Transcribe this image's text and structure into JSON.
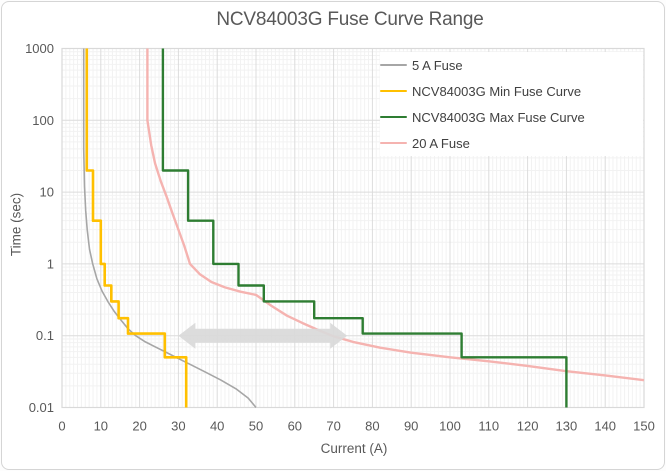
{
  "colors": {
    "card_border": "#d5d5d5",
    "plot_border": "#d9d9d9",
    "grid_major": "#dcdcdc",
    "grid_minor": "#f2f2f2",
    "axis_text": "#595959",
    "title_text": "#595959",
    "legend_text": "#404040",
    "arrow": "#d9d9d9"
  },
  "chart_data": {
    "type": "line",
    "title": "NCV84003G Fuse Curve Range",
    "xlabel": "Current (A)",
    "ylabel": "Time (sec)",
    "grid": "major and minor, both axes",
    "legend_position": "top-right-inside",
    "x_axis": {
      "scale": "linear",
      "min": 0,
      "max": 150,
      "tick_values": [
        0,
        10,
        20,
        30,
        40,
        50,
        60,
        70,
        80,
        90,
        100,
        110,
        120,
        130,
        140,
        150
      ],
      "tick_labels": [
        "0",
        "10",
        "20",
        "30",
        "40",
        "50",
        "60",
        "70",
        "80",
        "90",
        "100",
        "110",
        "120",
        "130",
        "140",
        "150"
      ]
    },
    "y_axis": {
      "scale": "log",
      "min": 0.01,
      "max": 1000,
      "tick_values": [
        1000,
        100,
        10,
        1,
        0.1,
        0.01
      ],
      "tick_labels": [
        "1000",
        "100",
        "10",
        "1",
        "0.1",
        "0.01"
      ]
    },
    "series": [
      {
        "name": "5 A Fuse",
        "color": "#a6a6a6",
        "style": "smooth",
        "stroke_width": 1.6,
        "points": [
          [
            5.6,
            1000
          ],
          [
            5.6,
            40
          ],
          [
            5.8,
            12
          ],
          [
            6.1,
            5.5
          ],
          [
            6.5,
            3
          ],
          [
            7.1,
            1.6
          ],
          [
            7.9,
            1
          ],
          [
            9,
            0.62
          ],
          [
            10.3,
            0.42
          ],
          [
            11.8,
            0.3
          ],
          [
            13.4,
            0.22
          ],
          [
            15.2,
            0.165
          ],
          [
            17,
            0.125
          ],
          [
            19,
            0.1
          ],
          [
            21.5,
            0.082
          ],
          [
            24,
            0.07
          ],
          [
            26.5,
            0.06
          ],
          [
            30,
            0.048
          ],
          [
            33,
            0.04
          ],
          [
            37,
            0.031
          ],
          [
            41,
            0.024
          ],
          [
            45,
            0.018
          ],
          [
            48,
            0.0135
          ],
          [
            50,
            0.01
          ]
        ]
      },
      {
        "name": "NCV84003G Min Fuse Curve",
        "color": "#ffc000",
        "style": "step",
        "stroke_width": 2.6,
        "points": [
          [
            6.4,
            1000
          ],
          [
            6.4,
            20
          ],
          [
            8,
            20
          ],
          [
            8,
            4
          ],
          [
            10,
            4
          ],
          [
            10,
            1
          ],
          [
            11,
            1
          ],
          [
            11,
            0.5
          ],
          [
            12.7,
            0.5
          ],
          [
            12.7,
            0.3
          ],
          [
            14.6,
            0.3
          ],
          [
            14.6,
            0.175
          ],
          [
            17,
            0.175
          ],
          [
            17,
            0.107
          ],
          [
            26.5,
            0.107
          ],
          [
            26.5,
            0.05
          ],
          [
            32,
            0.05
          ],
          [
            32,
            0.01
          ]
        ]
      },
      {
        "name": "NCV84003G Max Fuse Curve",
        "color": "#2e7d32",
        "style": "step",
        "stroke_width": 2.4,
        "points": [
          [
            26,
            1000
          ],
          [
            26,
            20
          ],
          [
            32.5,
            20
          ],
          [
            32.5,
            4
          ],
          [
            39,
            4
          ],
          [
            39,
            1
          ],
          [
            45.5,
            1
          ],
          [
            45.5,
            0.5
          ],
          [
            52,
            0.5
          ],
          [
            52,
            0.3
          ],
          [
            65,
            0.3
          ],
          [
            65,
            0.175
          ],
          [
            77.5,
            0.175
          ],
          [
            77.5,
            0.107
          ],
          [
            103,
            0.107
          ],
          [
            103,
            0.05
          ],
          [
            130,
            0.05
          ],
          [
            130,
            0.01
          ]
        ]
      },
      {
        "name": "20 A Fuse",
        "color": "#f5b3b0",
        "style": "smooth",
        "stroke_width": 2.4,
        "points": [
          [
            22,
            1000
          ],
          [
            22,
            100
          ],
          [
            23,
            45
          ],
          [
            24,
            25
          ],
          [
            25.5,
            14
          ],
          [
            27,
            8.5
          ],
          [
            28.5,
            5
          ],
          [
            30,
            3
          ],
          [
            31.5,
            1.8
          ],
          [
            33,
            1
          ],
          [
            35.5,
            0.72
          ],
          [
            38.5,
            0.56
          ],
          [
            42,
            0.47
          ],
          [
            46,
            0.41
          ],
          [
            50,
            0.37
          ],
          [
            54,
            0.26
          ],
          [
            58,
            0.19
          ],
          [
            62,
            0.15
          ],
          [
            66,
            0.12
          ],
          [
            70,
            0.098
          ],
          [
            75,
            0.082
          ],
          [
            82,
            0.068
          ],
          [
            90,
            0.058
          ],
          [
            100,
            0.05
          ],
          [
            110,
            0.044
          ],
          [
            120,
            0.038
          ],
          [
            130,
            0.032
          ],
          [
            140,
            0.028
          ],
          [
            150,
            0.024
          ]
        ]
      }
    ],
    "annotation_arrow": {
      "shape": "double-headed-horizontal-arrow",
      "from_current": 30,
      "to_current": 73.5,
      "at_time_sec": 0.1,
      "color": "#d9d9d9"
    }
  }
}
